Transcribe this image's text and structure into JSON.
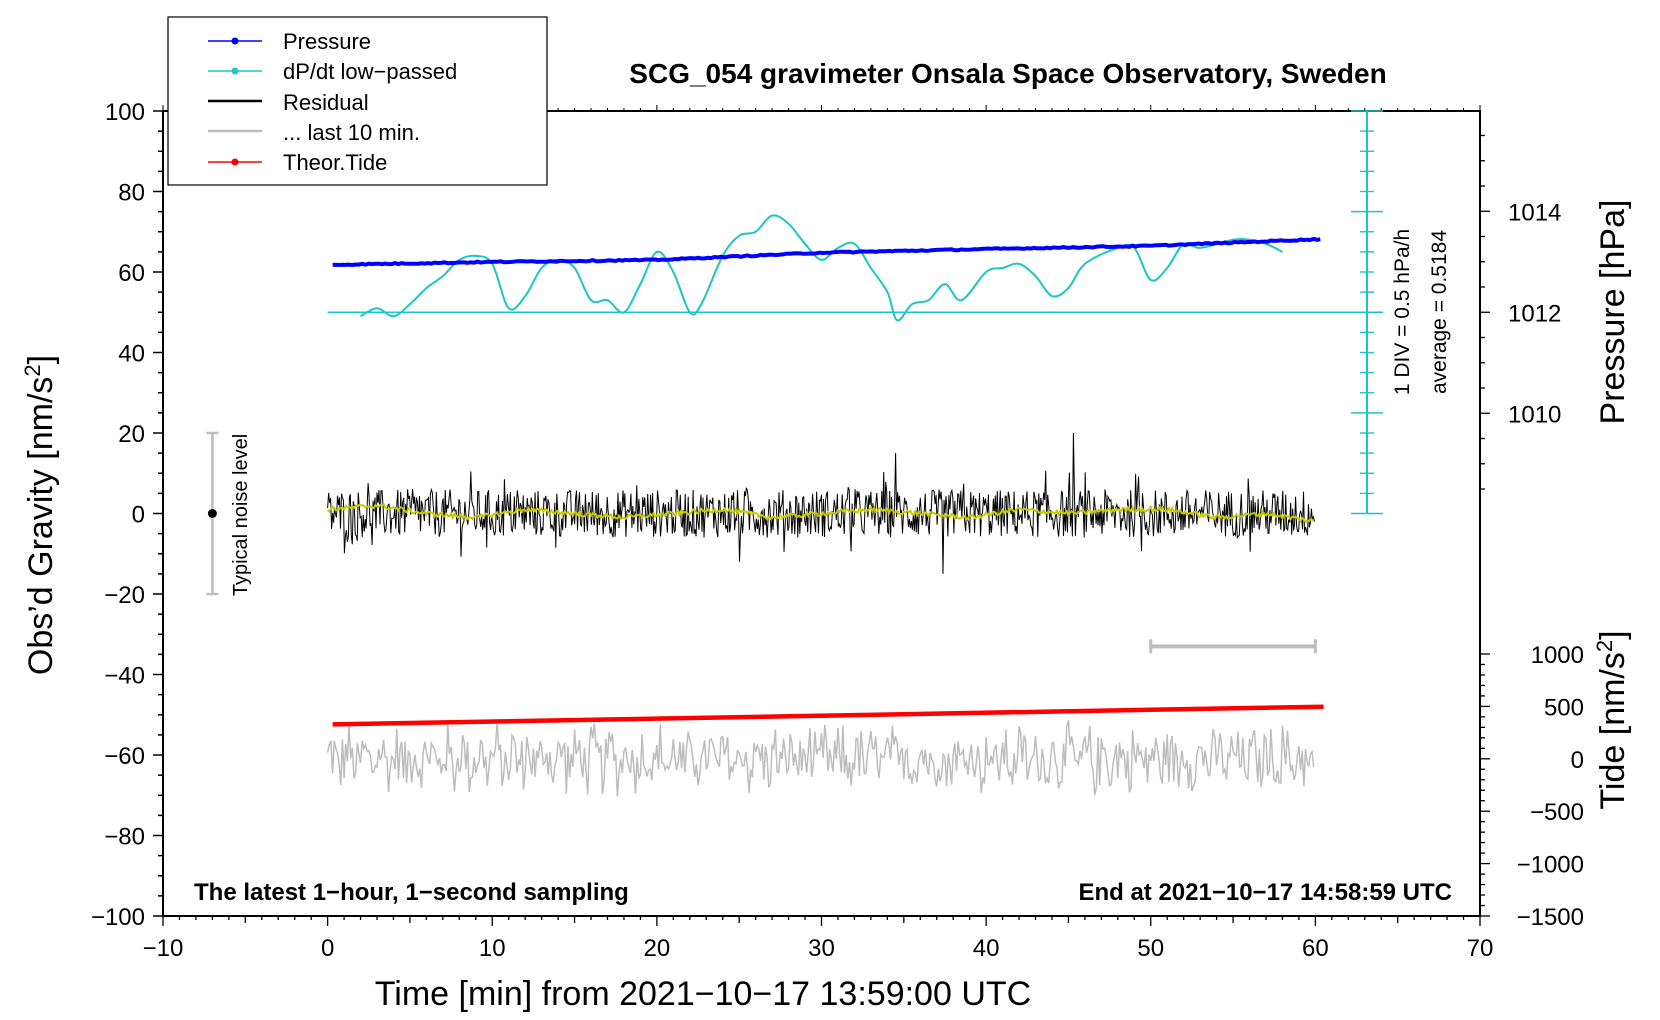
{
  "chart_data": {
    "type": "line",
    "title": "SCG_054 gravimeter Onsala Space Observatory, Sweden",
    "xlabel": "Time [min] from 2021−10−17 13:59:00 UTC",
    "ylabel_left_main": "Obs’d Gravity [nm/s",
    "ylabel_left_sup": "2",
    "ylabel_left_end": "]",
    "ylabel_right_pressure": "Pressure [hPa]",
    "ylabel_right_tide_main": "Tide [nm/s",
    "ylabel_right_tide_sup": "2",
    "ylabel_right_tide_end": "]",
    "annotation_left": "The latest 1−hour, 1−second sampling",
    "annotation_right": "End at 2021−10−17 14:58:59 UTC",
    "noise_label": "Typical noise level",
    "scale_label": "1 DIV = 0.5 hPa/h",
    "average_label": "average = 0.5184",
    "xlim": [
      -10,
      70
    ],
    "ylim_gravity": [
      -100,
      100
    ],
    "ylim_tide": [
      -1500,
      1000
    ],
    "pressure_ref": {
      "value": 1012,
      "gravity_y": 50
    },
    "x_ticks": [
      "−10",
      "0",
      "10",
      "20",
      "30",
      "40",
      "50",
      "60",
      "70"
    ],
    "y_ticks_gravity": [
      "100",
      "80",
      "60",
      "40",
      "20",
      "0",
      "−20",
      "−40",
      "−60",
      "−80",
      "−100"
    ],
    "y_ticks_pressure": [
      "1014",
      "1012",
      "1010"
    ],
    "y_ticks_tide": [
      "1000",
      "500",
      "0",
      "−500",
      "−1000",
      "−1500"
    ],
    "legend": [
      "Pressure",
      "dP/dt low−passed",
      "Residual",
      "... last 10 min.",
      "Theor.Tide"
    ],
    "colors": {
      "pressure": "#0000ff",
      "dpdt": "#1cc6c6",
      "residual": "#000000",
      "residual_smooth": "#c8c800",
      "last10": "#bdbdbd",
      "tide": "#ff0000"
    },
    "noise_range": [
      -20,
      20
    ],
    "noise_x": -7,
    "last10_range": [
      50,
      60
    ],
    "last10_y": -33,
    "series": [
      {
        "name": "Pressure",
        "unit": "gravity-axis",
        "x": [
          0.3,
          10,
          20,
          30,
          40,
          50,
          60.5
        ],
        "values": [
          61.8,
          62.5,
          63.0,
          64.8,
          65.7,
          66.5,
          68.2
        ]
      },
      {
        "name": "dP/dt low−passed",
        "unit": "gravity-axis",
        "x": [
          2,
          3,
          4,
          5,
          6,
          7,
          8,
          9,
          10,
          11,
          12,
          13,
          14,
          15,
          16,
          17,
          18,
          19,
          20,
          21,
          22,
          22.7,
          24,
          25,
          26,
          27,
          28,
          29,
          30,
          31,
          32,
          33,
          34,
          34.6,
          35.5,
          36.5,
          37.5,
          38.5,
          40,
          41,
          42,
          43,
          44,
          45,
          46,
          48,
          49,
          50,
          51,
          52,
          53,
          55,
          56,
          57,
          58
        ],
        "values": [
          49,
          51,
          49,
          52,
          56,
          59,
          63,
          64,
          62,
          51,
          54,
          61,
          63,
          61,
          53,
          53,
          50,
          57,
          65,
          60,
          50,
          52,
          64,
          69,
          70,
          74,
          72,
          67,
          63,
          66,
          67,
          61,
          55,
          48,
          52,
          53,
          57,
          53,
          60,
          61,
          62,
          59,
          54,
          56,
          62,
          66,
          66,
          58,
          61,
          67,
          66,
          68,
          68,
          67,
          65
        ]
      },
      {
        "name": "Residual",
        "unit": "gravity-axis",
        "x_range": [
          0,
          60
        ],
        "amplitude": 6,
        "peaks": [
          {
            "x": 45.3,
            "value": 20
          },
          {
            "x": 34.5,
            "value": 15
          },
          {
            "x": 37.4,
            "value": -15
          },
          {
            "x": 25,
            "value": -12
          }
        ]
      },
      {
        "name": "Residual smoothed",
        "unit": "gravity-axis",
        "x_range": [
          0,
          60
        ],
        "values": [
          1,
          2,
          0,
          -1,
          1,
          0,
          -1,
          0,
          1,
          -1,
          0,
          1,
          0,
          -1,
          1,
          0,
          1,
          1,
          -1,
          0,
          -2
        ]
      },
      {
        "name": "... last 10 min.",
        "unit": "gravity-axis",
        "x_range": [
          0,
          60
        ],
        "center": -61,
        "amplitude": 9
      },
      {
        "name": "Theor.Tide",
        "unit": "gravity-axis",
        "x": [
          0.3,
          60.5
        ],
        "values": [
          -52.4,
          -48.0
        ]
      }
    ]
  }
}
